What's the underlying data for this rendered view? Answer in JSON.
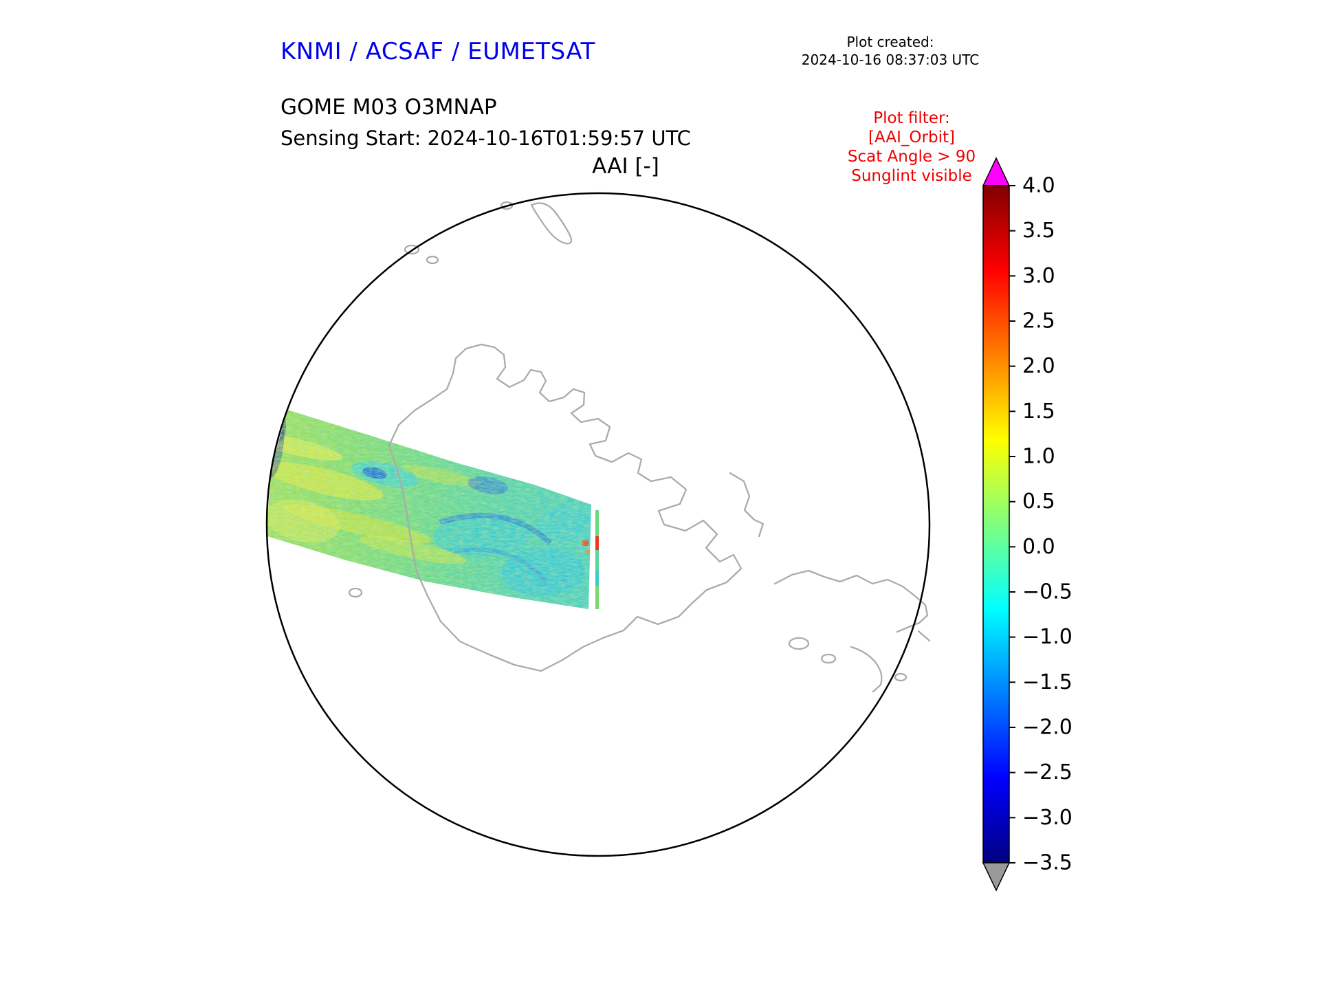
{
  "header": {
    "brand": "KNMI / ACSAF / EUMETSAT",
    "plot_created_label": "Plot created:",
    "plot_created_time": "2024-10-16 08:37:03 UTC",
    "product": "GOME M03 O3MNAP",
    "sensing_start": "Sensing Start: 2024-10-16T01:59:57 UTC",
    "plot_title": "AAI [-]",
    "filter_lines": [
      "Plot filter:",
      "[AAI_Orbit]",
      "Scat Angle > 90",
      "Sunglint visible"
    ]
  },
  "colors": {
    "brand_blue": "#0000ee",
    "filter_red": "#ee0000",
    "coastline_gray": "#ababab",
    "circle_outline": "#000000"
  },
  "chart_data": {
    "type": "heatmap",
    "title": "AAI [-]",
    "subtitle": "GOME M03 O3MNAP single orbit swath",
    "projection": "south polar stereographic (Antarctica centered)",
    "legend_position": "right colorbar",
    "colorbar": {
      "label": "AAI [-]",
      "min": -3.5,
      "max": 4.0,
      "tick_step": 0.5,
      "tick_labels": [
        "4.0",
        "3.5",
        "3.0",
        "2.5",
        "2.0",
        "1.5",
        "1.0",
        "0.5",
        "0.0",
        "−0.5",
        "−1.0",
        "−1.5",
        "−2.0",
        "−2.5",
        "−3.0",
        "−3.5"
      ],
      "colormap": "jet",
      "colormap_stops": [
        {
          "pos": 0.0,
          "color": "#000080"
        },
        {
          "pos": 0.125,
          "color": "#0000ff"
        },
        {
          "pos": 0.375,
          "color": "#00ffff"
        },
        {
          "pos": 0.625,
          "color": "#ffff00"
        },
        {
          "pos": 0.875,
          "color": "#ff0000"
        },
        {
          "pos": 1.0,
          "color": "#800000"
        }
      ],
      "over_arrow_color": "#ff00ff",
      "under_arrow_color": "#9a9a9a"
    },
    "swath": {
      "description": "Single descending orbit swath crossing the left half of the polar map toward the Antarctic Peninsula; AAI values mostly between −1.5 and 1.0 (greens and cyans with yellow streaks, scattered blue patches and a few red specks at the swath edge).",
      "approx_value_range": [
        -1.5,
        1.0
      ]
    }
  }
}
